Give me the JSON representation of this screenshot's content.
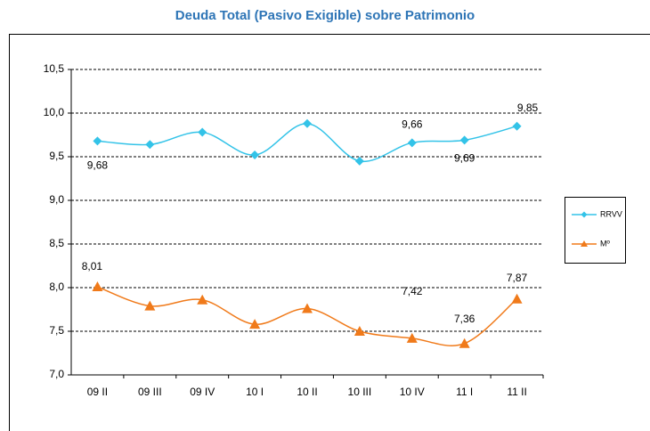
{
  "chart_data": {
    "type": "line",
    "title": "Deuda Total (Pasivo Exigible) sobre Patrimonio",
    "categories": [
      "09 II",
      "09 III",
      "09 IV",
      "10 I",
      "10 II",
      "10 III",
      "10 IV",
      "11 I",
      "11 II"
    ],
    "series": [
      {
        "name": "RRVV",
        "color": "#33c3e8",
        "marker": "diamond",
        "values": [
          9.68,
          9.64,
          9.78,
          9.52,
          9.88,
          9.45,
          9.66,
          9.69,
          9.85
        ],
        "value_labels": [
          "9,68",
          null,
          null,
          null,
          null,
          null,
          "9,66",
          "9,69",
          "9,85"
        ]
      },
      {
        "name": "Mº",
        "color": "#f07a1a",
        "marker": "triangle",
        "values": [
          8.01,
          7.79,
          7.86,
          7.58,
          7.76,
          7.5,
          7.42,
          7.36,
          7.87
        ],
        "value_labels": [
          "8,01",
          null,
          null,
          null,
          null,
          null,
          "7,42",
          "7,36",
          "7,87"
        ]
      }
    ],
    "ylim": [
      7.0,
      10.5
    ],
    "yticks": [
      {
        "value": 7.0,
        "label": "7,0"
      },
      {
        "value": 7.5,
        "label": "7,5"
      },
      {
        "value": 8.0,
        "label": "8,0"
      },
      {
        "value": 8.5,
        "label": "8,5"
      },
      {
        "value": 9.0,
        "label": "9,0"
      },
      {
        "value": 9.5,
        "label": "9,5"
      },
      {
        "value": 10.0,
        "label": "10,0"
      },
      {
        "value": 10.5,
        "label": "10,5"
      }
    ],
    "grid": true,
    "legend": "right"
  }
}
